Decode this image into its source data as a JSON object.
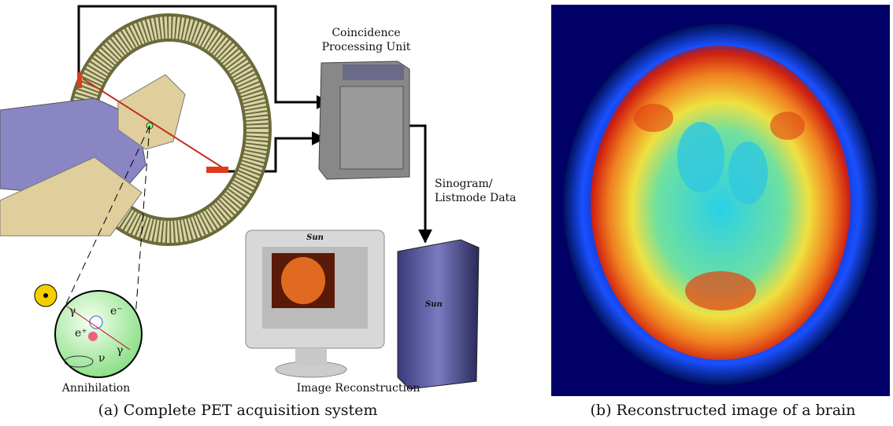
{
  "diagram": {
    "coincidence_unit": [
      "Coincidence",
      "Processing Unit"
    ],
    "data_link": [
      "Sinogram/",
      "Listmode Data"
    ],
    "annihilation": "Annihilation",
    "reconstruction": "Image Reconstruction",
    "particles": [
      "e⁻",
      "e⁺",
      "ν",
      "γ",
      "γ"
    ],
    "logos": [
      "Sun",
      "Sun"
    ]
  },
  "captions": [
    "(a) Complete PET acquisition system",
    "(b) Reconstructed image of a brain"
  ]
}
